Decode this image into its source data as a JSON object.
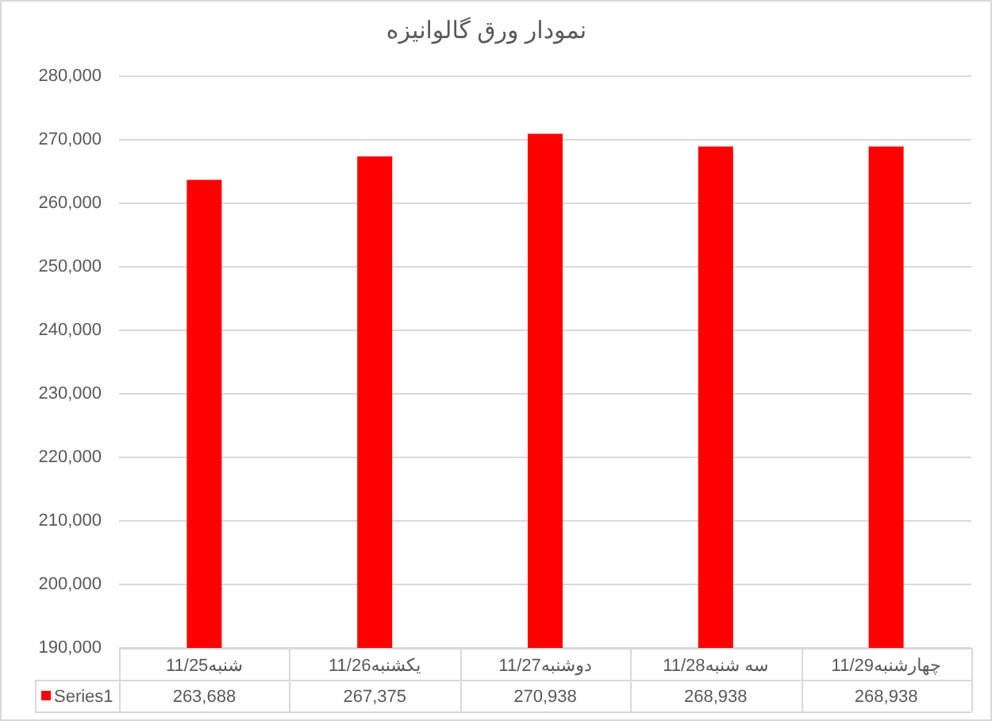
{
  "chart_data": {
    "type": "bar",
    "title": "نمودار ورق گالوانیزه",
    "categories": [
      "شنبه11/25",
      "یکشنبه11/26",
      "دوشنبه11/27",
      "سه شنبه11/28",
      "چهارشنبه11/29"
    ],
    "series": [
      {
        "name": "Series1",
        "color": "#ff0000",
        "values": [
          263688,
          267375,
          270938,
          268938,
          268938
        ],
        "value_labels": [
          "263,688",
          "267,375",
          "270,938",
          "268,938",
          "268,938"
        ]
      }
    ],
    "ylim": [
      190000,
      280000
    ],
    "yticks": [
      {
        "value": 190000,
        "label": "190,000"
      },
      {
        "value": 200000,
        "label": "200,000"
      },
      {
        "value": 210000,
        "label": "210,000"
      },
      {
        "value": 220000,
        "label": "220,000"
      },
      {
        "value": 230000,
        "label": "230,000"
      },
      {
        "value": 240000,
        "label": "240,000"
      },
      {
        "value": 250000,
        "label": "250,000"
      },
      {
        "value": 260000,
        "label": "260,000"
      },
      {
        "value": 270000,
        "label": "270,000"
      },
      {
        "value": 280000,
        "label": "280,000"
      }
    ],
    "grid": "y",
    "legend": "bottom"
  }
}
